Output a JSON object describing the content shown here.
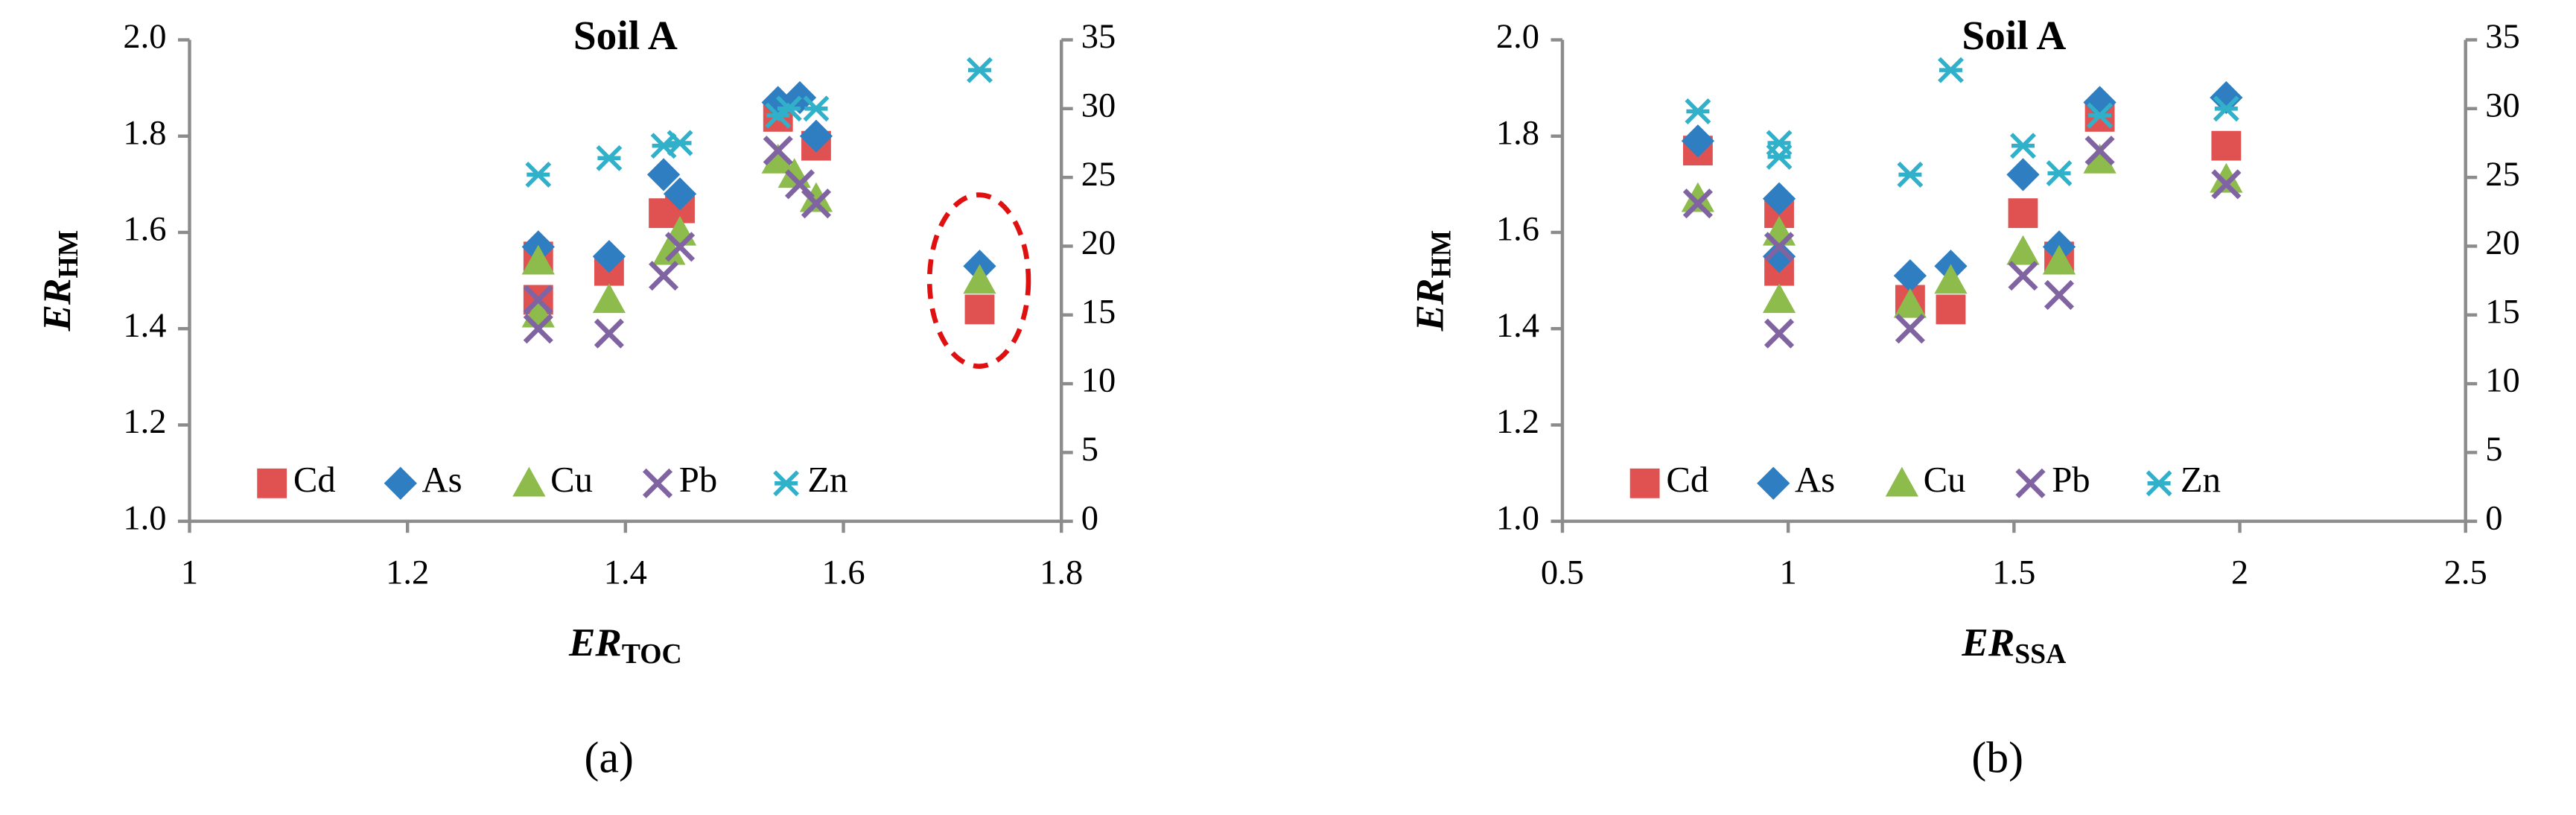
{
  "chart_data": [
    {
      "type": "scatter",
      "title": "Soil A",
      "xlabel": {
        "main": "ER",
        "sub": "TOC"
      },
      "ylabel": {
        "main": "ER",
        "sub": "HM"
      },
      "caption": "(a)",
      "xlim": [
        1,
        1.8
      ],
      "xticks": [
        1,
        1.2,
        1.4,
        1.6,
        1.8
      ],
      "ylim": [
        1,
        2
      ],
      "yticks": [
        {
          "value": 1,
          "label": "1.0"
        },
        1.2,
        1.4,
        1.6,
        1.8,
        {
          "value": 2,
          "label": "2.0"
        }
      ],
      "y2lim": [
        0,
        35
      ],
      "y2ticks": [
        0,
        5,
        10,
        15,
        20,
        25,
        30,
        35
      ],
      "legend": "bottom",
      "grid": false,
      "series": [
        {
          "name": "Cd",
          "color": "#e05252",
          "marker": "square",
          "x": [
            1.32,
            1.32,
            1.385,
            1.435,
            1.45,
            1.54,
            1.575,
            1.725
          ],
          "values": [
            1.55,
            1.46,
            1.52,
            1.64,
            1.65,
            1.84,
            1.78,
            1.44
          ]
        },
        {
          "name": "As",
          "color": "#2f7ec1",
          "marker": "diamond",
          "x": [
            1.32,
            1.385,
            1.435,
            1.45,
            1.54,
            1.56,
            1.575,
            1.725
          ],
          "values": [
            1.57,
            1.55,
            1.72,
            1.68,
            1.87,
            1.88,
            1.8,
            1.53
          ]
        },
        {
          "name": "Cu",
          "color": "#8dbb4c",
          "marker": "triangle",
          "x": [
            1.32,
            1.32,
            1.385,
            1.44,
            1.45,
            1.54,
            1.555,
            1.575,
            1.725
          ],
          "values": [
            1.54,
            1.43,
            1.46,
            1.56,
            1.6,
            1.75,
            1.72,
            1.67,
            1.5
          ]
        },
        {
          "name": "Pb",
          "color": "#8064a2",
          "marker": "x",
          "x": [
            1.32,
            1.32,
            1.385,
            1.435,
            1.45,
            1.54,
            1.56,
            1.575
          ],
          "values": [
            1.46,
            1.4,
            1.39,
            1.51,
            1.57,
            1.77,
            1.7,
            1.66
          ]
        },
        {
          "name": "Zn",
          "color": "#31b0c9",
          "marker": "asterisk",
          "axis": "y2",
          "x": [
            1.32,
            1.385,
            1.435,
            1.45,
            1.54,
            1.55,
            1.575,
            1.725
          ],
          "values": [
            25.2,
            26.4,
            27.3,
            27.5,
            29.5,
            30,
            30,
            32.8
          ]
        }
      ]
    },
    {
      "type": "scatter",
      "title": "Soil A",
      "xlabel": {
        "main": "ER",
        "sub": "SSA"
      },
      "ylabel": {
        "main": "ER",
        "sub": "HM"
      },
      "caption": "(b)",
      "xlim": [
        0.5,
        2.5
      ],
      "xticks": [
        0.5,
        1,
        1.5,
        2,
        2.5
      ],
      "ylim": [
        1,
        2
      ],
      "yticks": [
        {
          "value": 1,
          "label": "1.0"
        },
        1.2,
        1.4,
        1.6,
        1.8,
        {
          "value": 2,
          "label": "2.0"
        }
      ],
      "y2lim": [
        0,
        35
      ],
      "y2ticks": [
        0,
        5,
        10,
        15,
        20,
        25,
        30,
        35
      ],
      "legend": "bottom",
      "grid": false,
      "series": [
        {
          "name": "Cd",
          "color": "#e05252",
          "marker": "square",
          "x": [
            0.8,
            0.98,
            0.98,
            1.27,
            1.36,
            1.52,
            1.6,
            1.69,
            1.97
          ],
          "values": [
            1.77,
            1.52,
            1.64,
            1.46,
            1.44,
            1.64,
            1.55,
            1.84,
            1.78
          ]
        },
        {
          "name": "As",
          "color": "#2f7ec1",
          "marker": "diamond",
          "x": [
            0.8,
            0.98,
            0.98,
            1.27,
            1.36,
            1.52,
            1.6,
            1.69,
            1.97
          ],
          "values": [
            1.79,
            1.55,
            1.67,
            1.51,
            1.53,
            1.72,
            1.57,
            1.87,
            1.88
          ]
        },
        {
          "name": "Cu",
          "color": "#8dbb4c",
          "marker": "triangle",
          "x": [
            0.8,
            0.98,
            0.98,
            1.27,
            1.36,
            1.52,
            1.6,
            1.69,
            1.97
          ],
          "values": [
            1.67,
            1.46,
            1.6,
            1.45,
            1.5,
            1.56,
            1.54,
            1.75,
            1.71
          ]
        },
        {
          "name": "Pb",
          "color": "#8064a2",
          "marker": "x",
          "x": [
            0.8,
            0.98,
            0.98,
            1.27,
            1.52,
            1.6,
            1.69,
            1.97
          ],
          "values": [
            1.66,
            1.39,
            1.57,
            1.4,
            1.51,
            1.47,
            1.77,
            1.7
          ]
        },
        {
          "name": "Zn",
          "color": "#31b0c9",
          "marker": "asterisk",
          "axis": "y2",
          "x": [
            0.8,
            0.98,
            0.98,
            1.27,
            1.36,
            1.52,
            1.6,
            1.69,
            1.97
          ],
          "values": [
            29.8,
            26.5,
            27.5,
            25.2,
            32.8,
            27.3,
            25.3,
            29.5,
            30
          ]
        }
      ]
    }
  ]
}
